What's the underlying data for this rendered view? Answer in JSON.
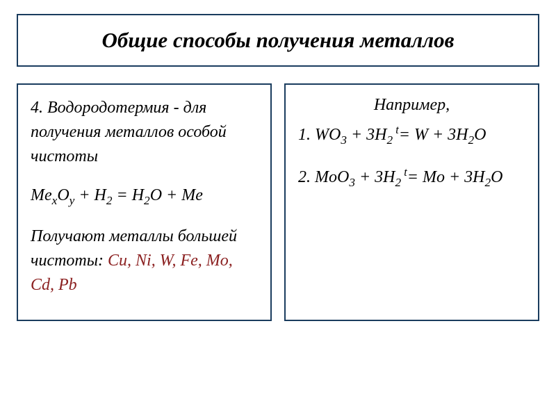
{
  "title": "Общие способы получения металлов",
  "left": {
    "heading_part1": "4. Водородотермия",
    "heading_part2": " - для получения металлов особой чистоты",
    "formula_lhs_me": "Me",
    "formula_sub_x": "x",
    "formula_o": "O",
    "formula_sub_y": "y",
    "formula_plus_h": " + H",
    "formula_sub_2a": "2",
    "formula_eq_h": " = H",
    "formula_sub_2b": "2",
    "formula_o2": "O + Me",
    "bottom_text": "Получают металлы большей чистоты: ",
    "bottom_elements": "Cu, Ni, W, Fe, Mo, Cd, Pb"
  },
  "right": {
    "example_label": "Например,",
    "eq1_lead": "1. WO",
    "eq1_sub3": "3",
    "eq1_plus3h": " + 3H",
    "eq1_sub2": "2",
    "eq1_sup_t": " t",
    "eq1_eq": "=  W + 3H",
    "eq1_sub2b": "2",
    "eq1_o": "O",
    "eq2_lead": "2. MoO",
    "eq2_sub3": "3",
    "eq2_plus3h": " + 3H",
    "eq2_sub2": "2",
    "eq2_sup_t": " t",
    "eq2_eq": "=  Mo + 3H",
    "eq2_sub2b": "2",
    "eq2_o": "O"
  },
  "colors": {
    "border": "#1a3c5e",
    "text": "#000000",
    "highlight": "#8b2020",
    "background": "#ffffff"
  }
}
